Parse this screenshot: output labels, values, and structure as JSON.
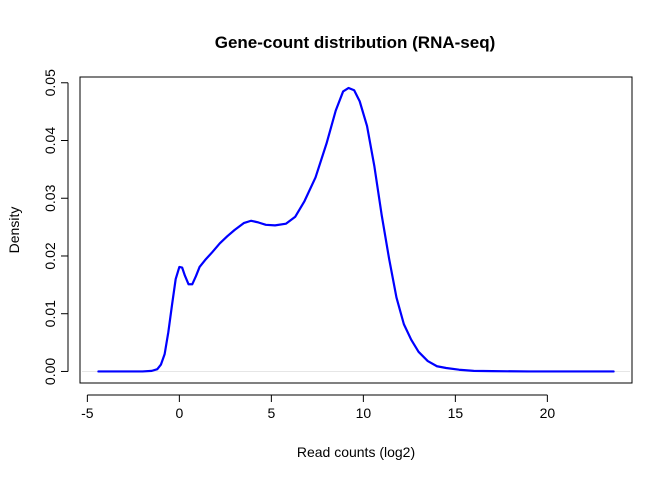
{
  "chart_data": {
    "type": "line",
    "title": "Gene-count distribution (RNA-seq)",
    "xlabel": "Read counts (log2)",
    "ylabel": "Density",
    "xlim": [
      -5.4,
      24.6
    ],
    "ylim": [
      -0.002,
      0.051
    ],
    "xticks": [
      "-5",
      "0",
      "5",
      "10",
      "15",
      "20"
    ],
    "yticks": [
      "0.00",
      "0.01",
      "0.02",
      "0.03",
      "0.04",
      "0.05"
    ],
    "grid": false,
    "legend": "none",
    "colors": {
      "line": "#0000ff",
      "zero_line": "#e6e6e6",
      "axis": "#000000"
    },
    "series": [
      {
        "x": [
          -4.4,
          -3,
          -2,
          -1.5,
          -1.2,
          -1.0,
          -0.8,
          -0.6,
          -0.4,
          -0.2,
          0.0,
          0.15,
          0.3,
          0.5,
          0.7,
          0.9,
          1.1,
          1.4,
          1.8,
          2.2,
          2.6,
          3.0,
          3.5,
          3.9,
          4.3,
          4.7,
          5.2,
          5.8,
          6.3,
          6.8,
          7.4,
          8.0,
          8.5,
          8.9,
          9.2,
          9.5,
          9.8,
          10.2,
          10.6,
          11.0,
          11.4,
          11.8,
          12.2,
          12.6,
          13.0,
          13.5,
          14.0,
          14.5,
          15.2,
          16.0,
          17.0,
          19.0,
          21.0,
          23.6
        ],
        "y": [
          0.0,
          0.0,
          0.0,
          0.0001,
          0.0004,
          0.0012,
          0.003,
          0.0068,
          0.0115,
          0.016,
          0.0181,
          0.018,
          0.0166,
          0.0151,
          0.0151,
          0.0165,
          0.0181,
          0.0193,
          0.0207,
          0.0222,
          0.0234,
          0.0245,
          0.0257,
          0.0261,
          0.0258,
          0.0254,
          0.0253,
          0.0256,
          0.0268,
          0.0295,
          0.0336,
          0.0395,
          0.0452,
          0.0485,
          0.0491,
          0.0487,
          0.0468,
          0.0425,
          0.0355,
          0.027,
          0.0195,
          0.0128,
          0.0082,
          0.0055,
          0.0034,
          0.0018,
          0.0009,
          0.0006,
          0.0003,
          0.0001,
          5e-05,
          0.0,
          0.0,
          0.0
        ]
      }
    ]
  }
}
